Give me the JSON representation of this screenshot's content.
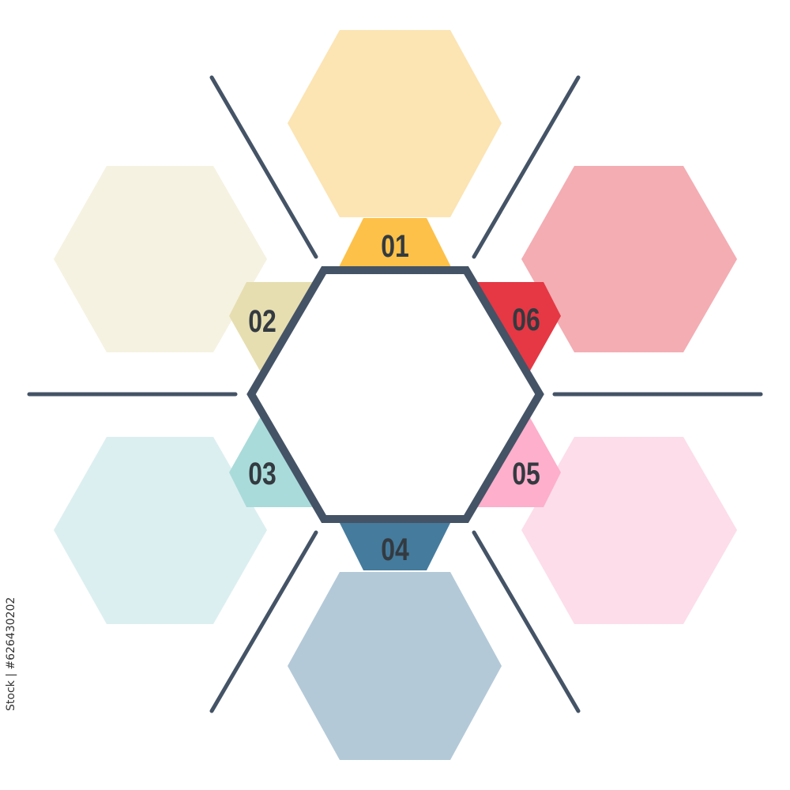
{
  "steps": [
    {
      "label": "01",
      "tab_color": "#FDC149",
      "hex_color": "#FCE4B3"
    },
    {
      "label": "02",
      "tab_color": "#E6DEB0",
      "hex_color": "#F5F2E1"
    },
    {
      "label": "03",
      "tab_color": "#A9DBDA",
      "hex_color": "#DCEFF0"
    },
    {
      "label": "04",
      "tab_color": "#457B9D",
      "hex_color": "#B3C9D8"
    },
    {
      "label": "05",
      "tab_color": "#FDAFCB",
      "hex_color": "#FDDDEA"
    },
    {
      "label": "06",
      "tab_color": "#E53844",
      "hex_color": "#F3ADB3"
    }
  ],
  "center_stroke_color": "#445366",
  "credit": "Stock | #626430202"
}
